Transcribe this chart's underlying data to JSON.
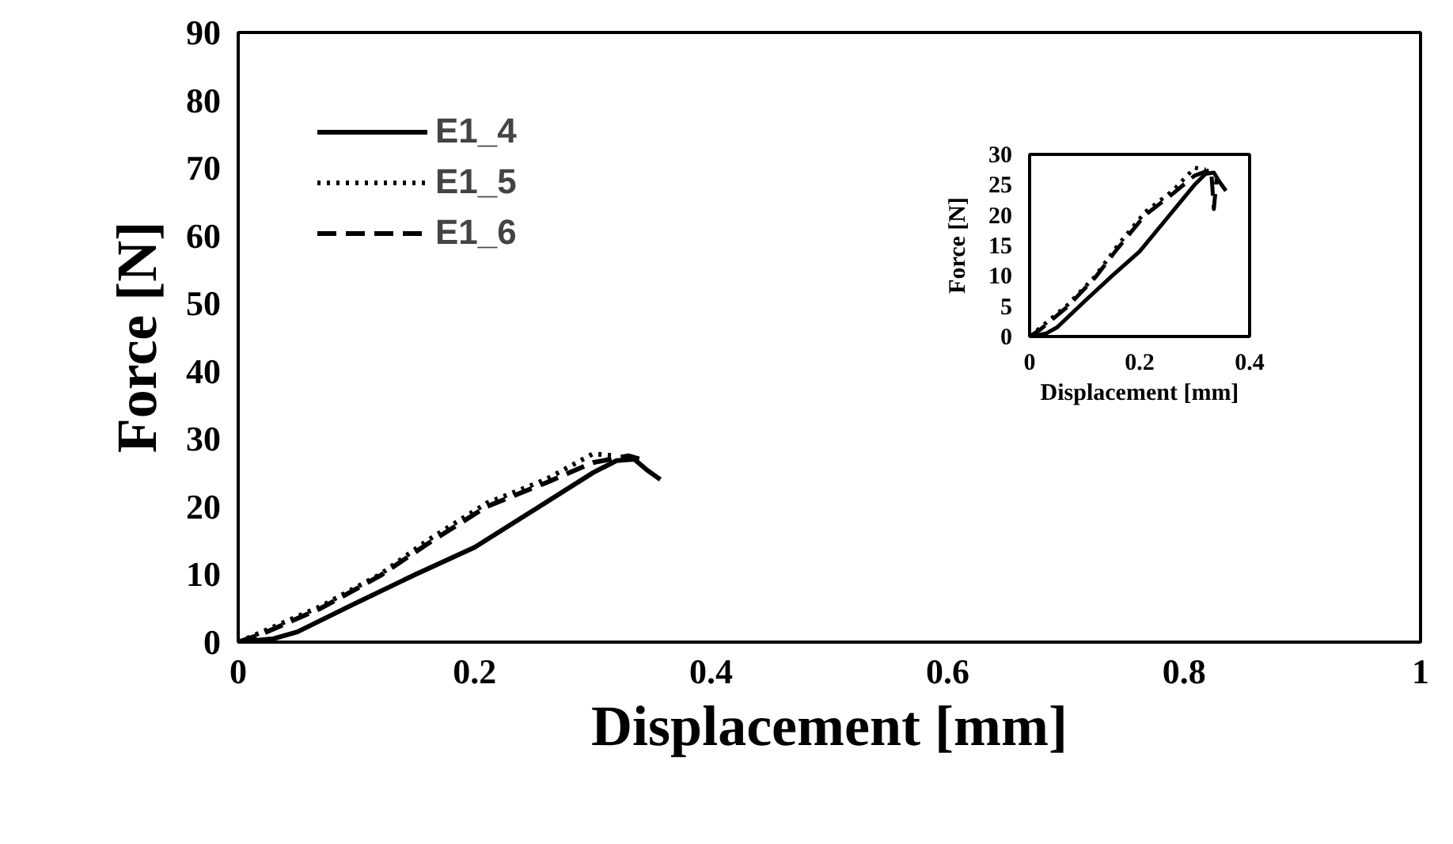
{
  "chart_data": [
    {
      "type": "line",
      "xlabel": "Displacement [mm]",
      "ylabel": "Force [N]",
      "xlim": [
        0,
        1
      ],
      "ylim": [
        0,
        90
      ],
      "xticks": [
        0,
        0.2,
        0.4,
        0.6,
        0.8,
        1
      ],
      "yticks": [
        0,
        10,
        20,
        30,
        40,
        50,
        60,
        70,
        80,
        90
      ],
      "grid": false,
      "legend": "top left",
      "marker": "none",
      "series": [
        {
          "name": "E1_4",
          "color": "#000000",
          "line_style": "solid",
          "x": [
            0,
            0.03,
            0.05,
            0.1,
            0.15,
            0.2,
            0.25,
            0.3,
            0.32,
            0.335,
            0.345,
            0.357
          ],
          "values": [
            0,
            0.5,
            1.5,
            5.8,
            10,
            14,
            19.5,
            25,
            26.8,
            27,
            25.5,
            24
          ]
        },
        {
          "name": "E1_5",
          "color": "#000000",
          "line_style": "dotted",
          "x": [
            0,
            0.02,
            0.07,
            0.12,
            0.16,
            0.21,
            0.26,
            0.3,
            0.32
          ],
          "values": [
            0,
            1.5,
            5.3,
            10,
            15,
            20.5,
            24,
            27.8,
            27.5
          ]
        },
        {
          "name": "E1_6",
          "color": "#000000",
          "line_style": "dashed",
          "x": [
            0,
            0.02,
            0.07,
            0.12,
            0.16,
            0.21,
            0.26,
            0.3,
            0.33,
            0.34
          ],
          "values": [
            0,
            1.2,
            5,
            9.8,
            14.5,
            20,
            23.5,
            26.5,
            27.5,
            27
          ]
        }
      ]
    },
    {
      "type": "line",
      "xlabel": "Displacement [mm]",
      "ylabel": "Force [N]",
      "xlim": [
        0,
        0.4
      ],
      "ylim": [
        0,
        30
      ],
      "xticks": [
        0,
        0.2,
        0.4
      ],
      "yticks": [
        0,
        5,
        10,
        15,
        20,
        25,
        30
      ],
      "grid": false,
      "legend": false,
      "marker": "none",
      "series": [
        {
          "color": "#000000",
          "line_style": "solid",
          "x": [
            0,
            0.03,
            0.05,
            0.1,
            0.15,
            0.2,
            0.25,
            0.3,
            0.32,
            0.335,
            0.345,
            0.357
          ],
          "values": [
            0,
            0.5,
            1.5,
            5.8,
            10,
            14,
            19.5,
            25,
            26.8,
            27,
            25.5,
            24
          ]
        },
        {
          "color": "#000000",
          "line_style": "dotted",
          "x": [
            0,
            0.02,
            0.07,
            0.12,
            0.16,
            0.21,
            0.26,
            0.3,
            0.32
          ],
          "values": [
            0,
            1.5,
            5.3,
            10,
            15,
            20.5,
            24,
            27.8,
            27.5
          ]
        },
        {
          "color": "#000000",
          "line_style": "dashed",
          "x": [
            0,
            0.02,
            0.07,
            0.12,
            0.16,
            0.21,
            0.26,
            0.3,
            0.33,
            0.335,
            0.34
          ],
          "values": [
            0,
            1.2,
            5,
            9.8,
            14.5,
            20,
            23.5,
            26.5,
            27.5,
            21,
            26
          ]
        }
      ]
    }
  ]
}
